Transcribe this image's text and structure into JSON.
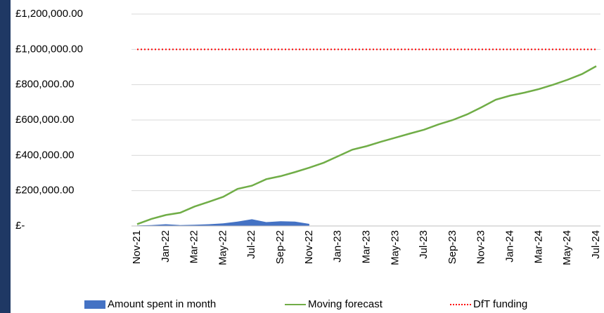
{
  "chart_data": {
    "type": "line",
    "categories": [
      "Nov-21",
      null,
      "Jan-22",
      null,
      "Mar-22",
      null,
      "May-22",
      null,
      "Jul-22",
      null,
      "Sep-22",
      null,
      "Nov-22",
      null,
      "Jan-23",
      null,
      "Mar-23",
      null,
      "May-23",
      null,
      "Jul-23",
      null,
      "Sep-23",
      null,
      "Nov-23",
      null,
      "Jan-24",
      null,
      "Mar-24",
      null,
      "May-24",
      null,
      "Jul-24"
    ],
    "series": [
      {
        "name": "Amount spent in month",
        "kind": "area",
        "color": "#4472c4",
        "values": [
          3000,
          5000,
          10000,
          5000,
          7000,
          10000,
          15000,
          25000,
          38000,
          22000,
          27000,
          25000,
          12000,
          null,
          null,
          null,
          null,
          null,
          null,
          null,
          null,
          null,
          null,
          null,
          null,
          null,
          null,
          null,
          null,
          null,
          null,
          null,
          null
        ]
      },
      {
        "name": "Moving forecast",
        "kind": "line",
        "color": "#70ad47",
        "values": [
          10000,
          40000,
          62000,
          75000,
          110000,
          137000,
          165000,
          210000,
          228000,
          265000,
          282000,
          305000,
          330000,
          358000,
          395000,
          432000,
          452000,
          477000,
          500000,
          523000,
          545000,
          575000,
          600000,
          632000,
          672000,
          715000,
          738000,
          755000,
          775000,
          800000,
          828000,
          860000,
          905000
        ]
      },
      {
        "name": "DfT funding",
        "kind": "dotted",
        "color": "#ff0000",
        "values": [
          1000000,
          1000000,
          1000000,
          1000000,
          1000000,
          1000000,
          1000000,
          1000000,
          1000000,
          1000000,
          1000000,
          1000000,
          1000000,
          1000000,
          1000000,
          1000000,
          1000000,
          1000000,
          1000000,
          1000000,
          1000000,
          1000000,
          1000000,
          1000000,
          1000000,
          1000000,
          1000000,
          1000000,
          1000000,
          1000000,
          1000000,
          1000000,
          1000000
        ]
      }
    ],
    "ylim": [
      0,
      1200000
    ],
    "yticks": [
      {
        "value": 0,
        "label": "£-"
      },
      {
        "value": 200000,
        "label": "£200,000.00"
      },
      {
        "value": 400000,
        "label": "£400,000.00"
      },
      {
        "value": 600000,
        "label": "£600,000.00"
      },
      {
        "value": 800000,
        "label": "£800,000.00"
      },
      {
        "value": 1000000,
        "label": "£1,000,000.00"
      },
      {
        "value": 1200000,
        "label": "£1,200,000.00"
      }
    ],
    "grid": true
  }
}
